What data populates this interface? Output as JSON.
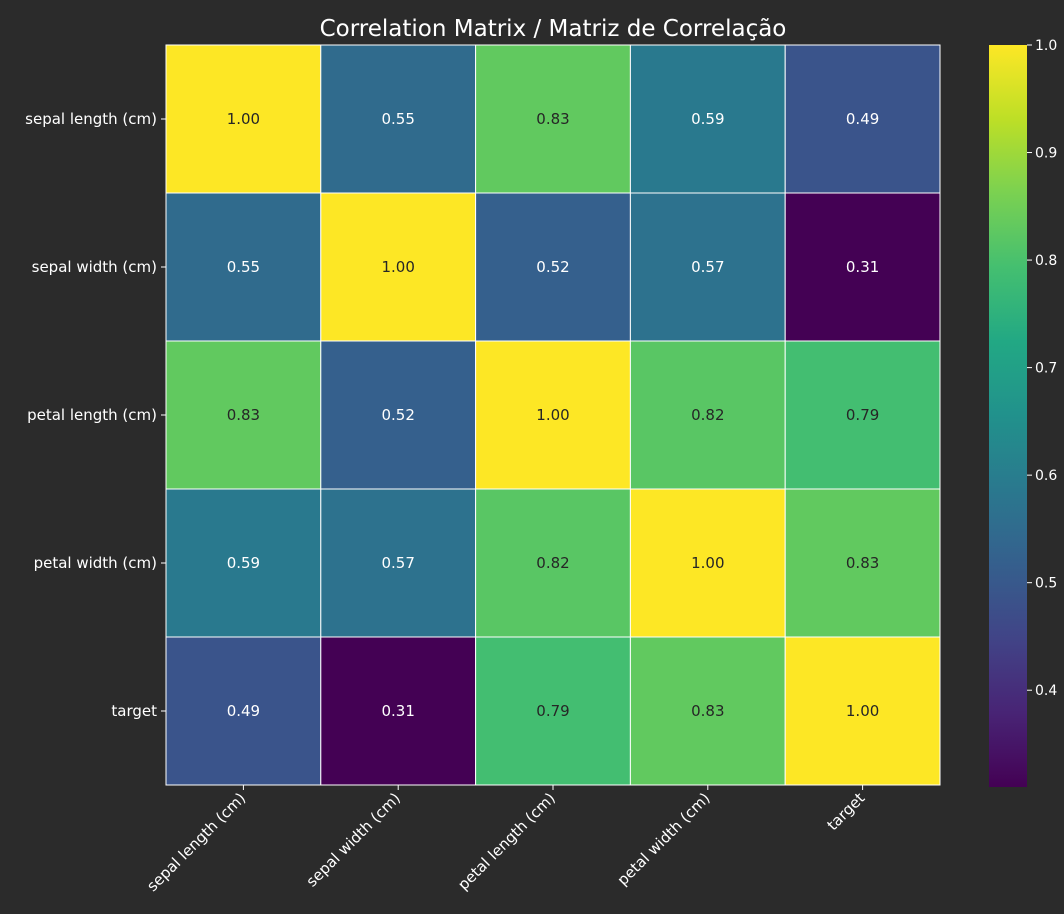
{
  "chart_data": {
    "type": "heatmap",
    "title": "Correlation Matrix / Matriz de Correlação",
    "row_labels": [
      "sepal length (cm)",
      "sepal width (cm)",
      "petal length (cm)",
      "petal width (cm)",
      "target"
    ],
    "col_labels": [
      "sepal length (cm)",
      "sepal width (cm)",
      "petal length (cm)",
      "petal width (cm)",
      "target"
    ],
    "values": [
      [
        1.0,
        0.55,
        0.83,
        0.59,
        0.49
      ],
      [
        0.55,
        1.0,
        0.52,
        0.57,
        0.31
      ],
      [
        0.83,
        0.52,
        1.0,
        0.82,
        0.79
      ],
      [
        0.59,
        0.57,
        0.82,
        1.0,
        0.83
      ],
      [
        0.49,
        0.31,
        0.79,
        0.83,
        1.0
      ]
    ],
    "value_format": "0.00",
    "colormap": "viridis",
    "color_range": [
      0.31,
      1.0
    ],
    "colorbar": {
      "ticks": [
        0.4,
        0.5,
        0.6,
        0.7,
        0.8,
        0.9,
        1.0
      ],
      "tick_labels": [
        "0.4",
        "0.5",
        "0.6",
        "0.7",
        "0.8",
        "0.9",
        "1.0"
      ]
    },
    "cell_border_color": "#ffffff",
    "text_color_dark_cells": "#ffffff",
    "text_color_light_cells": "#262626",
    "background_color": "#2b2b2b"
  }
}
